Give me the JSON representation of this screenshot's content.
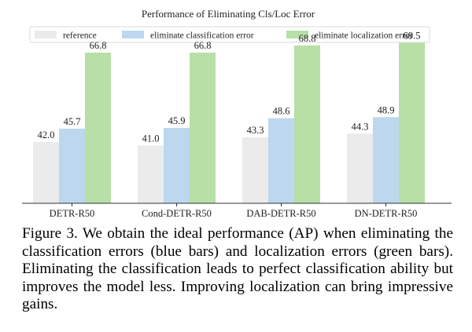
{
  "chart_data": {
    "type": "bar",
    "title": "Performance of Eliminating Cls/Loc Error",
    "xlabel": "",
    "ylabel": "",
    "categories": [
      "DETR-R50",
      "Cond-DETR-R50",
      "DAB-DETR-R50",
      "DN-DETR-R50"
    ],
    "series": [
      {
        "name": "reference",
        "values": [
          42.0,
          41.0,
          43.3,
          44.3
        ],
        "color": "#ebebeb"
      },
      {
        "name": "eliminate classification error",
        "values": [
          45.7,
          45.9,
          48.6,
          48.9
        ],
        "color": "#bdd7ee"
      },
      {
        "name": "eliminate localization error",
        "values": [
          66.8,
          66.8,
          68.8,
          69.5
        ],
        "color": "#b7dfa6"
      }
    ],
    "value_labels": [
      [
        "42.0",
        "41.0",
        "43.3",
        "44.3"
      ],
      [
        "45.7",
        "45.9",
        "48.6",
        "48.9"
      ],
      [
        "66.8",
        "66.8",
        "68.8",
        "69.5"
      ]
    ],
    "ylim": [
      25,
      74
    ],
    "grid": false,
    "y_ticks_shown": false,
    "legend_position": "top"
  },
  "caption": {
    "text": "Figure 3. We obtain the ideal performance (AP) when eliminating the classification errors (blue bars) and localization errors (green bars). Eliminating the classification leads to perfect classification ability but improves the model less.  Improving localization can bring impressive gains."
  }
}
